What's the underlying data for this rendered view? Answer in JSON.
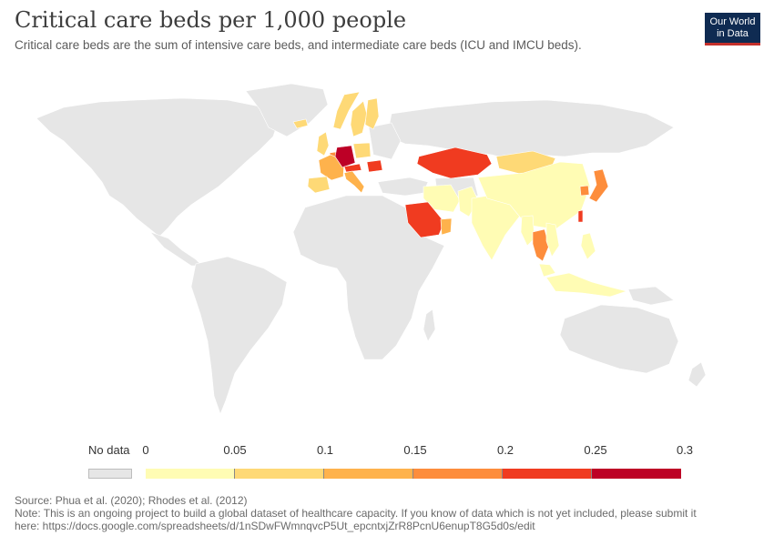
{
  "title": "Critical care beds per 1,000 people",
  "subtitle": "Critical care beds are the sum of intensive care beds, and intermediate care beds (ICU and IMCU beds).",
  "logo": {
    "line1": "Our World",
    "line2": "in Data"
  },
  "colors": {
    "no_data": "#e6e6e6",
    "scale": [
      "#fffcb4",
      "#fed976",
      "#feb24c",
      "#fd8d3c",
      "#f03b20",
      "#bd0026"
    ]
  },
  "legend": {
    "no_data_label": "No data",
    "ticks": [
      "0",
      "0.05",
      "0.1",
      "0.15",
      "0.2",
      "0.25",
      "0.3"
    ]
  },
  "regions": [
    {
      "name": "Germany",
      "bin": 5
    },
    {
      "name": "Austria",
      "bin": 4
    },
    {
      "name": "Kazakhstan",
      "bin": 4
    },
    {
      "name": "Saudi Arabia",
      "bin": 4
    },
    {
      "name": "Taiwan",
      "bin": 4
    },
    {
      "name": "France",
      "bin": 2
    },
    {
      "name": "Italy",
      "bin": 2
    },
    {
      "name": "Belgium",
      "bin": 3
    },
    {
      "name": "Romania",
      "bin": 4
    },
    {
      "name": "Thailand",
      "bin": 3
    },
    {
      "name": "Japan",
      "bin": 3
    },
    {
      "name": "South Korea",
      "bin": 3
    },
    {
      "name": "Oman",
      "bin": 2
    },
    {
      "name": "Mongolia",
      "bin": 1
    },
    {
      "name": "Spain",
      "bin": 1
    },
    {
      "name": "United Kingdom",
      "bin": 1
    },
    {
      "name": "Norway",
      "bin": 1
    },
    {
      "name": "Sweden",
      "bin": 1
    },
    {
      "name": "Finland",
      "bin": 1
    },
    {
      "name": "Poland",
      "bin": 1
    },
    {
      "name": "Iceland",
      "bin": 1
    },
    {
      "name": "China",
      "bin": 0
    },
    {
      "name": "India",
      "bin": 0
    },
    {
      "name": "Iran",
      "bin": 0
    },
    {
      "name": "Pakistan",
      "bin": 0
    },
    {
      "name": "Indonesia",
      "bin": 0
    },
    {
      "name": "Philippines",
      "bin": 0
    },
    {
      "name": "Malaysia",
      "bin": 0
    },
    {
      "name": "Myanmar",
      "bin": 0
    },
    {
      "name": "Vietnam",
      "bin": 0
    }
  ],
  "footer": {
    "source": "Source: Phua et al. (2020); Rhodes et al. (2012)",
    "note_line1": "Note: This is an ongoing project to build a global dataset of healthcare capacity. If you know of data which is not yet included, please submit it",
    "note_line2": "here: https://docs.google.com/spreadsheets/d/1nSDwFWmnqvcP5Ut_epcntxjZrR8PcnU6enupT8G5d0s/edit"
  }
}
